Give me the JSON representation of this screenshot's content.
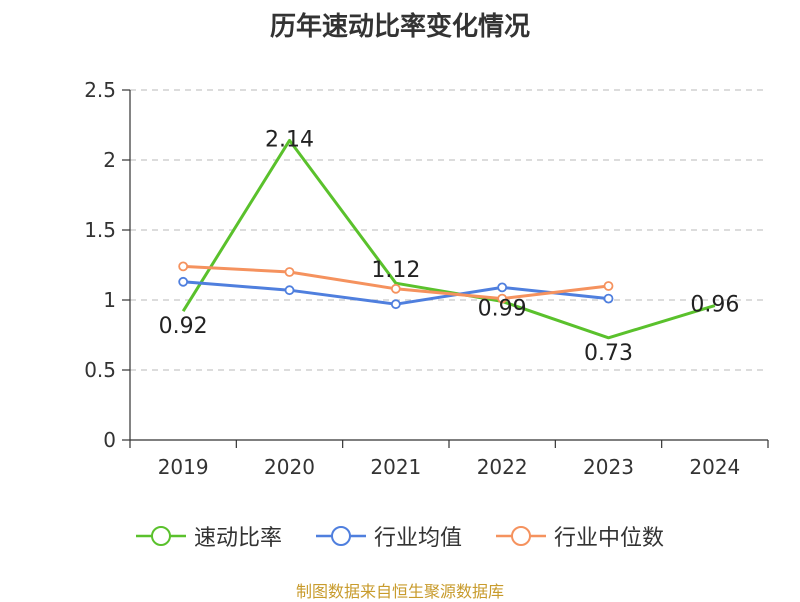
{
  "title": "历年速动比率变化情况",
  "source": "制图数据来自恒生聚源数据库",
  "chart_data": {
    "type": "line",
    "categories": [
      "2019",
      "2020",
      "2021",
      "2022",
      "2023",
      "2024"
    ],
    "yticks": [
      "0",
      "0.5",
      "1",
      "1.5",
      "2",
      "2.5"
    ],
    "ylim": [
      0,
      2.5
    ],
    "grid": "horizontal-dashed",
    "legend_position": "bottom",
    "series": [
      {
        "name": "速动比率",
        "color": "#5ac12c",
        "values": [
          0.92,
          2.14,
          1.12,
          0.99,
          0.73,
          0.96
        ],
        "labels": [
          "0.92",
          "2.14",
          "1.12",
          "0.99",
          "0.73",
          "0.96"
        ],
        "show_markers": false
      },
      {
        "name": "行业均值",
        "color": "#4f7fde",
        "values": [
          1.13,
          1.07,
          0.97,
          1.09,
          1.01,
          null
        ],
        "show_markers": true
      },
      {
        "name": "行业中位数",
        "color": "#f5925e",
        "values": [
          1.24,
          1.2,
          1.08,
          1.01,
          1.1,
          null
        ],
        "show_markers": true
      }
    ]
  }
}
